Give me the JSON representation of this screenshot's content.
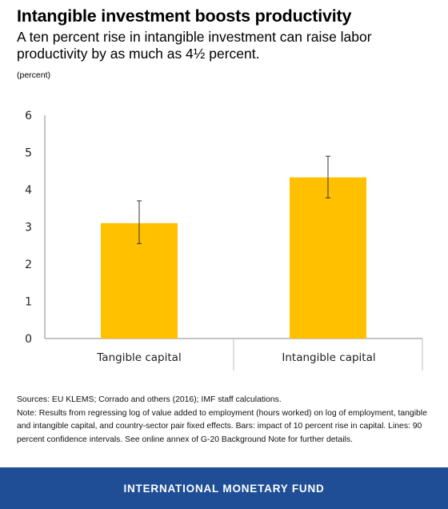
{
  "header": {
    "title": "Intangible investment boosts productivity",
    "subtitle": "A ten percent rise in intangible investment can raise labor productivity by as much as 4½ percent.",
    "unit_label": "(percent)"
  },
  "chart_data": {
    "type": "bar",
    "categories": [
      "Tangible capital",
      "Intangible capital"
    ],
    "values": [
      3.1,
      4.33
    ],
    "error_low": [
      2.55,
      3.78
    ],
    "error_high": [
      3.7,
      4.9
    ],
    "ylim": [
      0,
      6
    ],
    "yticks": [
      0,
      1,
      2,
      3,
      4,
      5,
      6
    ],
    "xlabel": "",
    "ylabel": "",
    "grid": false,
    "bar_color": "#ffc000",
    "error_bar_color": "#333333"
  },
  "notes": {
    "sources": "Sources: EU KLEMS; Corrado and others (2016); IMF staff calculations.",
    "note": "Note: Results from regressing log of value added to employment (hours worked) on log of employment, tangible and intangible capital, and country-sector pair fixed effects. Bars: impact of 10 percent rise in capital. Lines: 90 percent confidence intervals. See online annex of G-20 Background Note for further details."
  },
  "footer": {
    "label": "INTERNATIONAL MONETARY FUND",
    "background": "#1f4e96"
  }
}
